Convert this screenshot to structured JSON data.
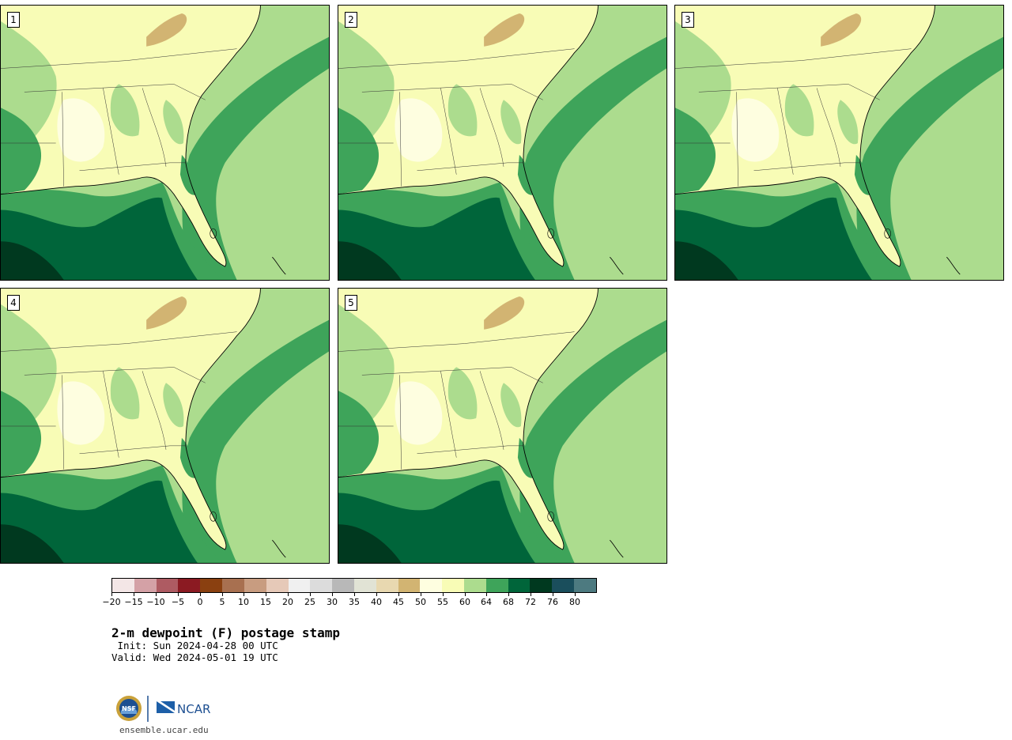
{
  "panels": [
    {
      "label": "1"
    },
    {
      "label": "2"
    },
    {
      "label": "3"
    },
    {
      "label": "4"
    },
    {
      "label": "5"
    }
  ],
  "colorbar": {
    "colors": [
      "#f3e6e6",
      "#d4a1a6",
      "#ae5b62",
      "#8b1a22",
      "#8a4010",
      "#a87050",
      "#c89c80",
      "#e6c9b8",
      "#f0f0f0",
      "#dcdcdc",
      "#b8b8b8",
      "#e1e3d5",
      "#e8d8b0",
      "#d2b472",
      "#fefee0",
      "#f8fcb6",
      "#acdc8e",
      "#3ea45a",
      "#00653a",
      "#00391f",
      "#1a4e5c",
      "#4d7a80"
    ],
    "tick_labels": [
      "−20",
      "−15",
      "−10",
      "−5",
      "0",
      "5",
      "10",
      "15",
      "20",
      "25",
      "30",
      "35",
      "40",
      "45",
      "50",
      "55",
      "60",
      "64",
      "68",
      "72",
      "76",
      "80"
    ]
  },
  "title": "2-m dewpoint (F) postage stamp",
  "init": " Init: Sun 2024-04-28 00 UTC",
  "valid": "Valid: Wed 2024-05-01 19 UTC",
  "logo": {
    "left_mark": "NSF",
    "right_mark": "NCAR"
  },
  "url": "ensemble.ucar.edu"
}
